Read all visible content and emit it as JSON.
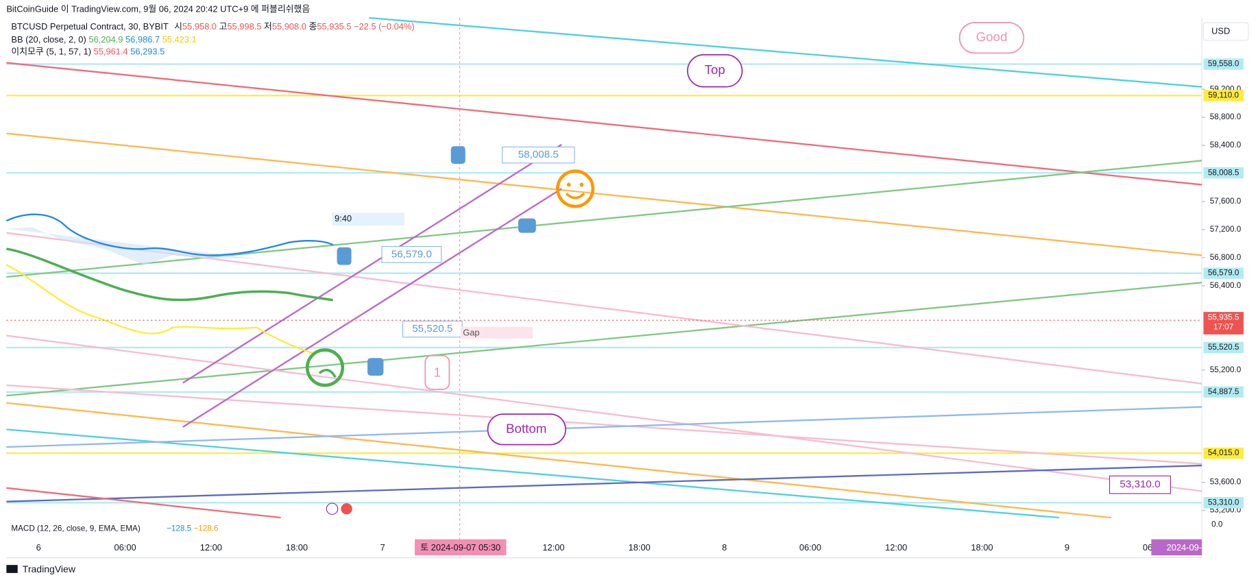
{
  "header": {
    "published": "BitCoinGuide 이 TradingView.com, 9월 06, 2024 20:42 UTC+9 에 퍼블리쉬했음",
    "symbol": "BTCUSD Perpetual Contract, 30, BYBIT",
    "ohlc": [
      "시",
      "55,958.0",
      "고",
      "55,998.5",
      "저",
      "55,908.0",
      "종",
      "55,935.5",
      "−22.5 (−0.04%)"
    ],
    "bb": [
      "BB (20, close, 2, 0)",
      "56,204.9",
      "56,986.7",
      "55,423.1"
    ],
    "ichimoku": [
      "이치모쿠 (5, 1, 57, 1)",
      "55,961.4",
      "56,293.5"
    ],
    "macd": [
      "MACD (12, 26, close, 9, EMA, EMA)",
      "−128.5",
      "−128.6"
    ]
  },
  "price_axis": {
    "currency": "USD",
    "ticks": [
      {
        "value": 59200,
        "label": "59,200.0"
      },
      {
        "value": 58800,
        "label": "58,800.0"
      },
      {
        "value": 58400,
        "label": "58,400.0"
      },
      {
        "value": 57600,
        "label": "57,600.0"
      },
      {
        "value": 57200,
        "label": "57,200.0"
      },
      {
        "value": 56800,
        "label": "56,800.0"
      },
      {
        "value": 56400,
        "label": "56,400.0"
      },
      {
        "value": 55200,
        "label": "55,200.0"
      },
      {
        "value": 53600,
        "label": "53,600.0"
      },
      {
        "value": 53200,
        "label": "53,200.0"
      }
    ],
    "levels": [
      {
        "value": 59558,
        "label": "59,558.0",
        "color": "#b2ebf2"
      },
      {
        "value": 59110,
        "label": "59,110.0",
        "color": "#ffeb3b"
      },
      {
        "value": 58008.5,
        "label": "58,008.5",
        "color": "#b2ebf2"
      },
      {
        "value": 56579,
        "label": "56,579.0",
        "color": "#b2ebf2"
      },
      {
        "value": 55520.5,
        "label": "55,520.5",
        "color": "#b2ebf2"
      },
      {
        "value": 54887.5,
        "label": "54,887.5",
        "color": "#b2ebf2"
      },
      {
        "value": 54015,
        "label": "54,015.0",
        "color": "#ffeb3b"
      },
      {
        "value": 53310,
        "label": "53,310.0",
        "color": "#b2ebf2"
      }
    ],
    "last": {
      "value": 55935.5,
      "label": "55,935.5",
      "countdown": "17:07"
    },
    "macd_zero": "0.0"
  },
  "time_axis": {
    "labels": [
      "6",
      "06:00",
      "12:00",
      "18:00",
      "7",
      "12:00",
      "18:00",
      "8",
      "06:00",
      "12:00",
      "18:00",
      "9",
      "06:"
    ],
    "cursor": "토 2024-09-07  05:30",
    "right": "2024-09-0"
  },
  "annotations": {
    "good": "Good",
    "top": "Top",
    "bottom": "Bottom",
    "one": "1",
    "callouts": [
      "58,008.5",
      "56,579.0",
      "55,520.5",
      "53,310.0"
    ],
    "time_box": "9:40",
    "gap": "Gap"
  },
  "footer": "TradingView"
}
